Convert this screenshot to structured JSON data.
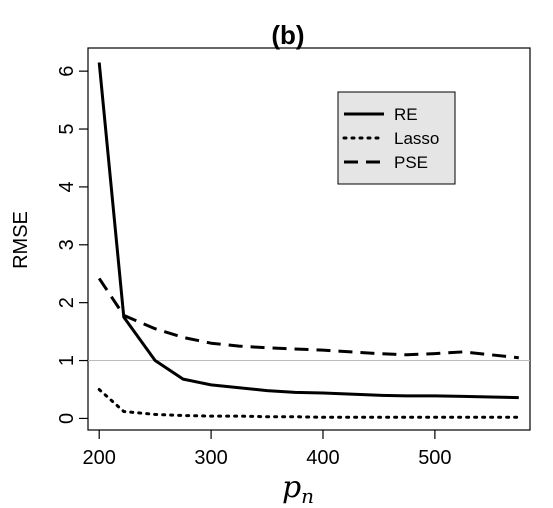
{
  "chart_data": {
    "type": "line",
    "title": "(b)",
    "xlabel": "pn",
    "ylabel": "RMSE",
    "xlim": [
      190,
      585
    ],
    "ylim": [
      -0.2,
      6.4
    ],
    "xticks": [
      200,
      300,
      400,
      500
    ],
    "yticks": [
      0,
      1,
      2,
      3,
      4,
      5,
      6
    ],
    "reference_line": 1,
    "legend_position": "top-right",
    "series": [
      {
        "name": "RE",
        "style": "solid",
        "x": [
          200,
          222,
          250,
          275,
          300,
          325,
          350,
          375,
          400,
          425,
          450,
          475,
          500,
          525,
          550,
          575
        ],
        "y": [
          6.15,
          1.75,
          1.0,
          0.68,
          0.58,
          0.53,
          0.48,
          0.45,
          0.44,
          0.42,
          0.4,
          0.39,
          0.39,
          0.38,
          0.37,
          0.36
        ]
      },
      {
        "name": "Lasso",
        "style": "dotted",
        "x": [
          200,
          222,
          250,
          275,
          300,
          325,
          350,
          375,
          400,
          425,
          450,
          475,
          500,
          525,
          550,
          575
        ],
        "y": [
          0.5,
          0.12,
          0.07,
          0.05,
          0.04,
          0.04,
          0.03,
          0.03,
          0.02,
          0.02,
          0.02,
          0.02,
          0.02,
          0.02,
          0.02,
          0.02
        ]
      },
      {
        "name": "PSE",
        "style": "dashed",
        "x": [
          200,
          222,
          250,
          275,
          300,
          325,
          350,
          375,
          400,
          425,
          450,
          475,
          500,
          525,
          550,
          575
        ],
        "y": [
          2.42,
          1.78,
          1.55,
          1.4,
          1.3,
          1.25,
          1.22,
          1.2,
          1.18,
          1.15,
          1.12,
          1.1,
          1.12,
          1.15,
          1.1,
          1.05
        ]
      }
    ]
  }
}
